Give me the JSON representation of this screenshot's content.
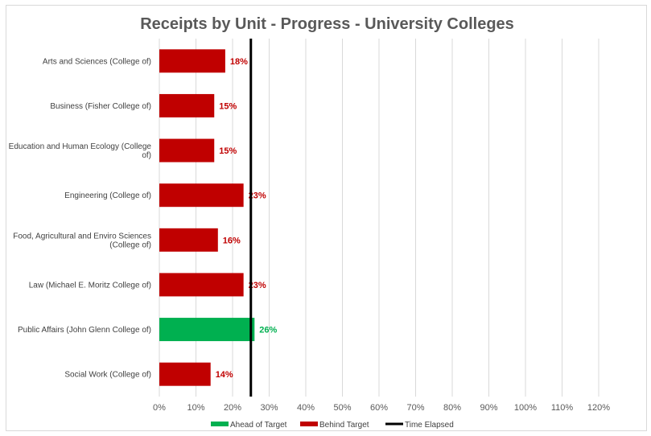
{
  "chart_data": {
    "type": "bar",
    "orientation": "horizontal",
    "title": "Receipts by Unit - Progress - University Colleges",
    "categories": [
      "Arts and Sciences (College of)",
      "Business (Fisher College of)",
      "Education and Human Ecology (College of)",
      "Engineering (College of)",
      "Food, Agricultural and Enviro Sciences (College of)",
      "Law (Michael E. Moritz College of)",
      "Public Affairs (John Glenn College of)",
      "Social Work (College of)"
    ],
    "category_lines": [
      [
        "Arts and Sciences (College of)"
      ],
      [
        "Business (Fisher College of)"
      ],
      [
        "Education and Human Ecology (College",
        "of)"
      ],
      [
        "Engineering (College of)"
      ],
      [
        "Food, Agricultural and Enviro Sciences",
        "(College of)"
      ],
      [
        "Law (Michael E. Moritz College of)"
      ],
      [
        "Public Affairs (John Glenn College of)"
      ],
      [
        "Social Work (College of)"
      ]
    ],
    "values": [
      18,
      15,
      15,
      23,
      16,
      23,
      26,
      14
    ],
    "value_labels": [
      "18%",
      "15%",
      "15%",
      "23%",
      "16%",
      "23%",
      "26%",
      "14%"
    ],
    "status": [
      "behind",
      "behind",
      "behind",
      "behind",
      "behind",
      "behind",
      "ahead",
      "behind"
    ],
    "time_elapsed": 25,
    "xlim": [
      0,
      120
    ],
    "xticks": [
      0,
      10,
      20,
      30,
      40,
      50,
      60,
      70,
      80,
      90,
      100,
      110,
      120
    ],
    "xtick_labels": [
      "0%",
      "10%",
      "20%",
      "30%",
      "40%",
      "50%",
      "60%",
      "70%",
      "80%",
      "90%",
      "100%",
      "110%",
      "120%"
    ],
    "grid": true,
    "legend_position": "bottom",
    "legend": [
      {
        "label": "Ahead of Target",
        "color": "#00b050",
        "kind": "bar"
      },
      {
        "label": "Behind Target",
        "color": "#c00000",
        "kind": "bar"
      },
      {
        "label": "Time Elapsed",
        "color": "#000000",
        "kind": "line"
      }
    ],
    "colors": {
      "ahead": "#00b050",
      "behind": "#c00000",
      "ahead_label": "#00b050",
      "behind_label": "#c00000"
    }
  }
}
